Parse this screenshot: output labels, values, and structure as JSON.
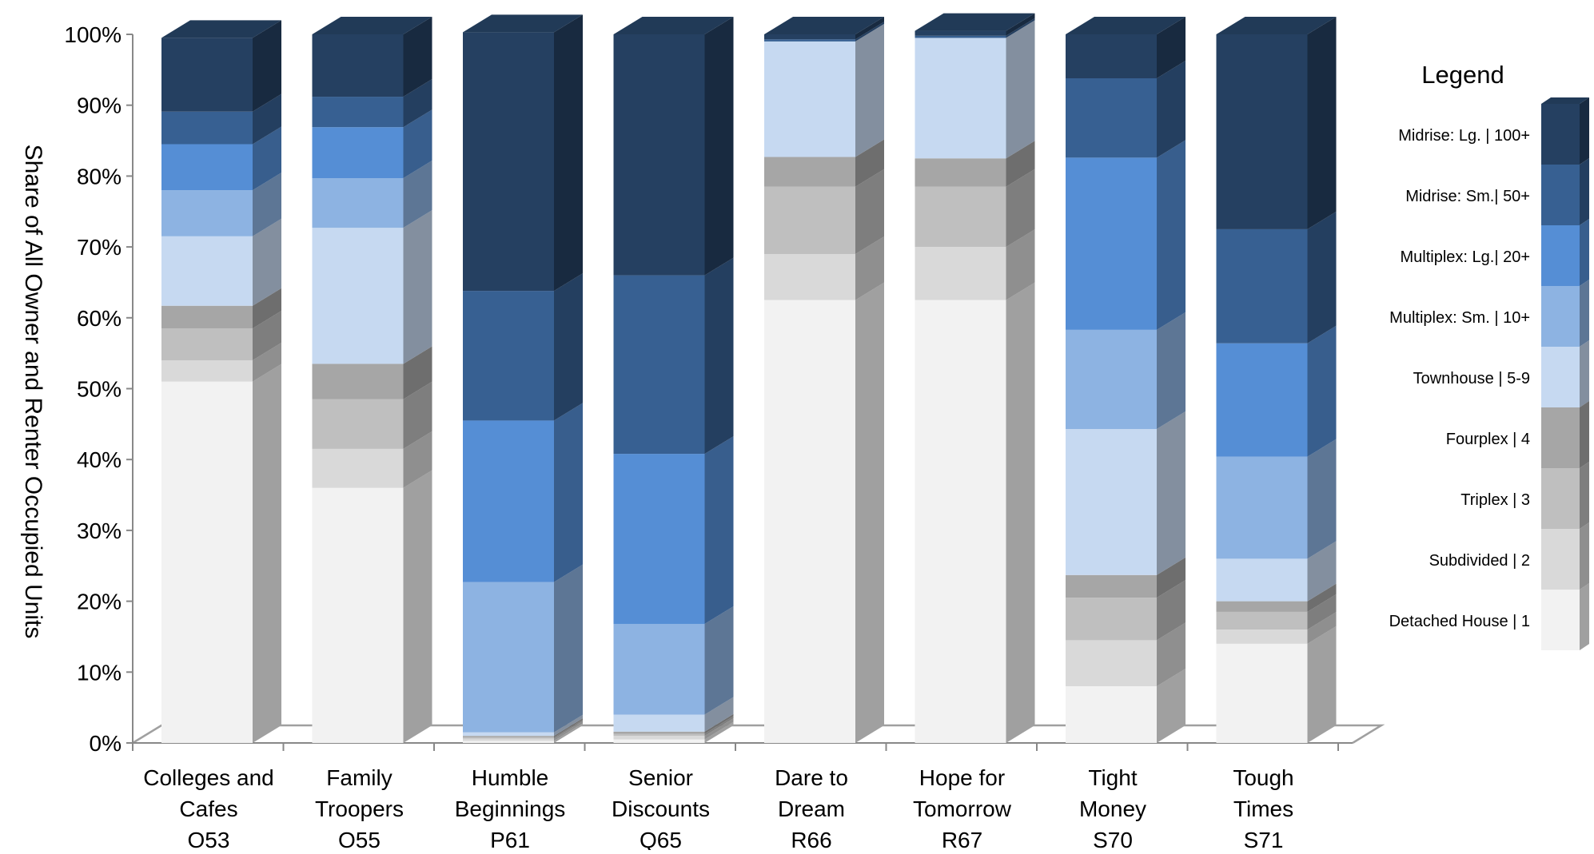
{
  "chart_data": {
    "type": "bar",
    "stacked": true,
    "three_d": true,
    "title": "",
    "xlabel": "",
    "ylabel": "Share of All Owner and Renter Occupied Units",
    "ylim": [
      0,
      100
    ],
    "yticks": [
      "0%",
      "10%",
      "20%",
      "30%",
      "40%",
      "50%",
      "60%",
      "70%",
      "80%",
      "90%",
      "100%"
    ],
    "grid": false,
    "legend": {
      "title": "Legend",
      "placement": "right"
    },
    "categories": [
      {
        "line1": "Colleges and",
        "line2": "Cafes",
        "code": "O53"
      },
      {
        "line1": "Family",
        "line2": "Troopers",
        "code": "O55"
      },
      {
        "line1": "Humble",
        "line2": "Beginnings",
        "code": "P61"
      },
      {
        "line1": "Senior",
        "line2": "Discounts",
        "code": "Q65"
      },
      {
        "line1": "Dare to",
        "line2": "Dream",
        "code": "R66"
      },
      {
        "line1": "Hope for",
        "line2": "Tomorrow",
        "code": "R67"
      },
      {
        "line1": "Tight",
        "line2": "Money",
        "code": "S70"
      },
      {
        "line1": "Tough",
        "line2": "Times",
        "code": "S71"
      }
    ],
    "series": [
      {
        "name": "Detached House | 1",
        "color": "#f2f2f2",
        "values": [
          51,
          36,
          0.3,
          0.5,
          62.5,
          62.5,
          8,
          14
        ]
      },
      {
        "name": "Subdivided | 2",
        "color": "#d9d9d9",
        "values": [
          3,
          5.5,
          0.3,
          0.5,
          6.5,
          7.5,
          6.5,
          2
        ]
      },
      {
        "name": "Triplex | 3",
        "color": "#bfbfbf",
        "values": [
          4.5,
          7,
          0.2,
          0.3,
          9.5,
          8.5,
          6,
          2.5
        ]
      },
      {
        "name": "Fourplex | 4",
        "color": "#a6a6a6",
        "values": [
          3.2,
          5,
          0.2,
          0.3,
          4.2,
          4,
          3.2,
          1.5
        ]
      },
      {
        "name": "Townhouse | 5-9",
        "color": "#c6d9f1",
        "values": [
          9.8,
          19.2,
          0.5,
          2.4,
          16.3,
          17,
          20.6,
          6
        ]
      },
      {
        "name": "Multiplex: Sm. | 10+",
        "color": "#8db3e2",
        "values": [
          6.5,
          7,
          21.2,
          12.8,
          0,
          0,
          14,
          14.4
        ]
      },
      {
        "name": "Multiplex: Lg.| 20+",
        "color": "#558ed5",
        "values": [
          6.5,
          7.2,
          22.8,
          24,
          0,
          0,
          24.3,
          16
        ]
      },
      {
        "name": "Midrise: Sm.| 50+",
        "color": "#376092",
        "values": [
          4.6,
          4.3,
          18.3,
          25.2,
          0.3,
          0.3,
          11.2,
          16.1
        ]
      },
      {
        "name": "Midrise: Lg. | 100+",
        "color": "#254061",
        "values": [
          10.4,
          8.8,
          36.5,
          34,
          0.7,
          0.7,
          6.2,
          27.5
        ]
      }
    ]
  }
}
